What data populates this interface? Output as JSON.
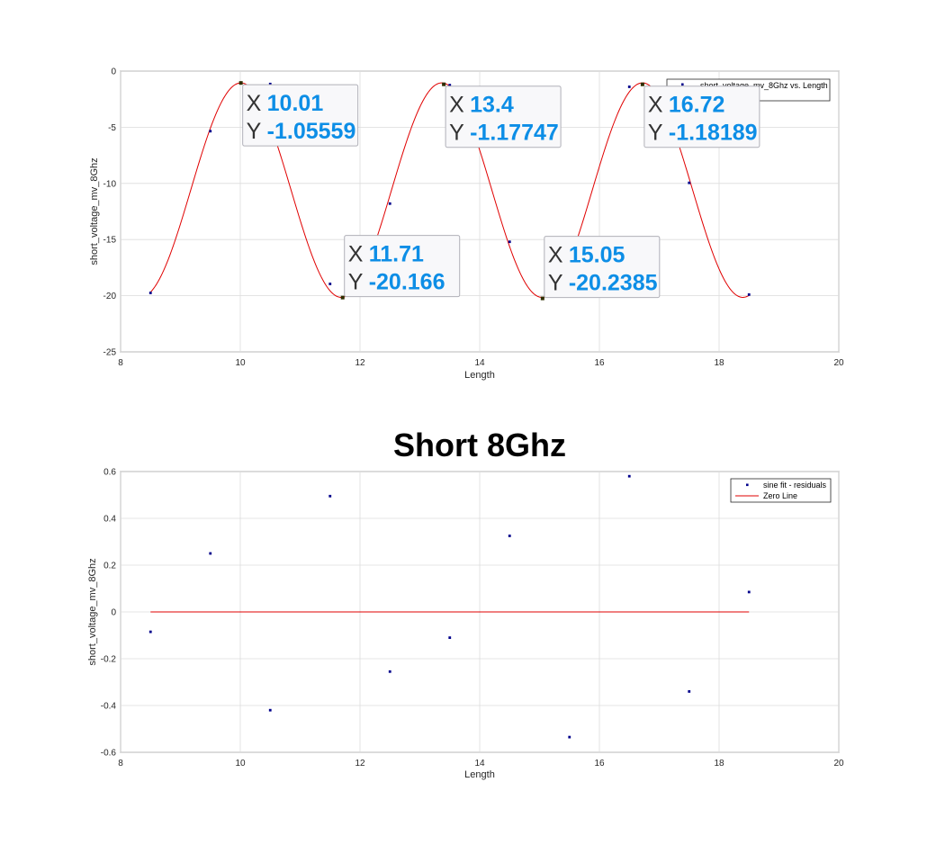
{
  "figure": {
    "title": "Short 8Ghz"
  },
  "chart_data": [
    {
      "type": "line",
      "xlabel": "Length",
      "ylabel": "short_voltage_mv_8Ghz",
      "xlim": [
        8,
        20
      ],
      "ylim": [
        -25,
        0
      ],
      "xticks": [
        "8",
        "10",
        "12",
        "14",
        "16",
        "18",
        "20"
      ],
      "yticks": [
        "0",
        "-5",
        "-10",
        "-15",
        "-20",
        "-25"
      ],
      "grid": true,
      "legend_position": "top-right",
      "series": [
        {
          "name": "short_voltage_mv_8Ghz vs. Length",
          "kind": "scatter",
          "color": "#00008b",
          "x": [
            8.5,
            9.5,
            10.5,
            11.5,
            12.5,
            13.5,
            14.5,
            15.5,
            16.5,
            17.5,
            18.5
          ],
          "y": [
            -19.75,
            -5.35,
            -1.15,
            -18.95,
            -11.8,
            -1.25,
            -15.2,
            -20.0,
            -1.4,
            -9.95,
            -19.9
          ]
        },
        {
          "name": "",
          "kind": "line",
          "color": "#e00000",
          "fit": {
            "offset": -10.6,
            "amplitude": 9.55,
            "period": 3.355,
            "peak_x": 10.01,
            "x_start": 8.5,
            "x_end": 18.5
          }
        }
      ],
      "datatips": [
        {
          "x_label": "X",
          "x": "10.01",
          "y_label": "Y",
          "y": "-1.05559",
          "px": 10.01,
          "py": -1.05559
        },
        {
          "x_label": "X",
          "x": "11.71",
          "y_label": "Y",
          "y": "-20.166",
          "px": 11.71,
          "py": -20.166
        },
        {
          "x_label": "X",
          "x": "13.4",
          "y_label": "Y",
          "y": "-1.17747",
          "px": 13.4,
          "py": -1.17747
        },
        {
          "x_label": "X",
          "x": "15.05",
          "y_label": "Y",
          "y": "-20.2385",
          "px": 15.05,
          "py": -20.2385
        },
        {
          "x_label": "X",
          "x": "16.72",
          "y_label": "Y",
          "y": "-1.18189",
          "px": 16.72,
          "py": -1.18189
        }
      ]
    },
    {
      "type": "scatter",
      "xlabel": "Length",
      "ylabel": "short_voltage_mv_8Ghz",
      "xlim": [
        8,
        20
      ],
      "ylim": [
        -0.6,
        0.6
      ],
      "xticks": [
        "8",
        "10",
        "12",
        "14",
        "16",
        "18",
        "20"
      ],
      "yticks": [
        "0.6",
        "0.4",
        "0.2",
        "0",
        "-0.2",
        "-0.4",
        "-0.6"
      ],
      "grid": true,
      "legend_position": "top-right",
      "series": [
        {
          "name": "sine fit - residuals",
          "kind": "scatter",
          "color": "#00008b",
          "x": [
            8.5,
            9.5,
            10.5,
            11.5,
            12.5,
            13.5,
            14.5,
            15.5,
            16.5,
            17.5,
            18.5
          ],
          "y": [
            -0.085,
            0.25,
            -0.42,
            0.495,
            -0.255,
            -0.11,
            0.325,
            -0.535,
            0.58,
            -0.34,
            0.085
          ]
        },
        {
          "name": "Zero Line",
          "kind": "line",
          "color": "#e00000",
          "x": [
            8.5,
            18.5
          ],
          "y": [
            0,
            0
          ]
        }
      ]
    }
  ]
}
